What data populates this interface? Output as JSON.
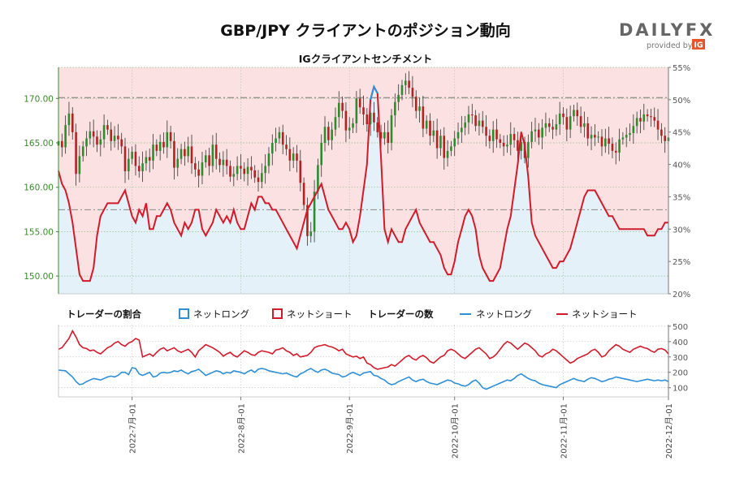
{
  "title": "GBP/JPY クライアントのポジション動向",
  "logo": {
    "name": "DAILYFX",
    "tagline": "provided by",
    "badge": "IG",
    "accent": "#e8552a"
  },
  "colors": {
    "net_long": "#2e8fd6",
    "net_short": "#d11a2a",
    "long_fill": "#e4f1f9",
    "short_fill": "#fbe1e1",
    "candle_up": "#2e8b2e",
    "candle_down": "#b22222",
    "axis_green": "#3c8a2e"
  },
  "chart_data": [
    {
      "type": "line",
      "subtitle": "IGクライアントセンチメント",
      "left_axis": {
        "range": [
          148,
          173.5
        ],
        "ticks": [
          "170.00",
          "165.00",
          "160.00",
          "155.00",
          "150.00"
        ],
        "tick_values": [
          170,
          165,
          160,
          155,
          150
        ]
      },
      "right_axis": {
        "range": [
          20,
          55
        ],
        "ticks": [
          "55%",
          "50%",
          "45%",
          "40%",
          "35%",
          "30%",
          "25%",
          "20%"
        ],
        "tick_values": [
          55,
          50,
          45,
          40,
          35,
          30,
          25,
          20
        ]
      },
      "x_ticks": [
        "2022-7月-01",
        "2022-8月-01",
        "2022-9月-01",
        "2022-10月-01",
        "2022-11月-01",
        "2022-12月-01"
      ],
      "x_tick_days": [
        21,
        52,
        83,
        113,
        144,
        174
      ],
      "reference_levels": {
        "price": 170.1,
        "percent": 33
      },
      "price_series": {
        "name": "GBP/JPY",
        "kind": "candlestick",
        "x_start_day": 0,
        "x_end_day": 174,
        "close": [
          165.2,
          164.5,
          167.0,
          168.3,
          166.2,
          161.5,
          163.5,
          164.6,
          165.5,
          166.3,
          165.7,
          164.8,
          165.4,
          167.0,
          166.5,
          165.2,
          165.8,
          165.4,
          164.6,
          161.8,
          163.2,
          164.0,
          162.4,
          161.8,
          162.7,
          163.4,
          163.0,
          164.8,
          164.1,
          165.1,
          164.5,
          166.2,
          165.2,
          162.2,
          163.2,
          164.3,
          163.5,
          164.6,
          162.7,
          162.0,
          161.3,
          162.8,
          163.6,
          162.4,
          164.8,
          163.2,
          162.5,
          163.1,
          162.4,
          161.2,
          161.5,
          162.4,
          162.1,
          161.5,
          162.3,
          161.9,
          161.1,
          160.6,
          161.6,
          162.4,
          163.8,
          165.0,
          165.5,
          166.2,
          164.8,
          164.3,
          163.0,
          163.8,
          163.0,
          160.5,
          158.0,
          154.5,
          155.0,
          159.5,
          162.5,
          165.0,
          166.8,
          165.3,
          166.5,
          167.9,
          169.5,
          168.6,
          166.4,
          166.7,
          167.2,
          170.0,
          169.0,
          168.2,
          167.1,
          168.4,
          167.3,
          166.2,
          165.5,
          166.2,
          165.0,
          168.1,
          169.6,
          170.4,
          171.5,
          172.0,
          171.2,
          170.2,
          168.6,
          169.1,
          166.6,
          167.5,
          165.8,
          166.4,
          164.4,
          165.8,
          163.3,
          164.1,
          164.6,
          165.5,
          166.2,
          166.7,
          167.3,
          168.2,
          168.1,
          166.9,
          167.5,
          166.8,
          165.8,
          165.2,
          166.5,
          165.4,
          165.0,
          164.6,
          164.8,
          166.0,
          165.3,
          164.1,
          165.1,
          163.3,
          165.1,
          166.3,
          166.5,
          165.6,
          166.7,
          167.2,
          166.8,
          166.5,
          167.1,
          168.3,
          167.9,
          166.5,
          168.0,
          168.7,
          168.0,
          166.8,
          167.2,
          165.5,
          165.9,
          165.6,
          165.7,
          164.6,
          165.5,
          164.9,
          164.1,
          163.9,
          165.4,
          165.6,
          165.9,
          166.1,
          166.9,
          167.8,
          167.4,
          168.2,
          168.0,
          167.9,
          167.5,
          166.5,
          165.8,
          165.2,
          165.6
        ]
      },
      "percent_series": [
        {
          "name": "ネットロング",
          "x_start_day": 0,
          "x_end_day": 174,
          "values": [
            39,
            37,
            36,
            34,
            31,
            27,
            23,
            22,
            22,
            22,
            24,
            29,
            32,
            33,
            34,
            34,
            34,
            34,
            35,
            36,
            34,
            32,
            31,
            33,
            32,
            34,
            30,
            30,
            32,
            32,
            33,
            34,
            33,
            31,
            30,
            29,
            31,
            30,
            31,
            33,
            33,
            30,
            29,
            30,
            31,
            33,
            32,
            31,
            32,
            31,
            33,
            31,
            30,
            30,
            32,
            34,
            33,
            35,
            35,
            34,
            34,
            33,
            33,
            32,
            31,
            30,
            29,
            28,
            27,
            29,
            31,
            33,
            34,
            35,
            36,
            37,
            35,
            33,
            32,
            31,
            30,
            30,
            31,
            30,
            28,
            29,
            32,
            36,
            40,
            50,
            52,
            51,
            41,
            30,
            28,
            30,
            29,
            28,
            28,
            30,
            31,
            32,
            33,
            31,
            30,
            29,
            28,
            28,
            27,
            26,
            24,
            23,
            23,
            25,
            28,
            30,
            32,
            33,
            32,
            30,
            26,
            24,
            23,
            22,
            22,
            23,
            24,
            27,
            30,
            32,
            36,
            40,
            45,
            43,
            38,
            31,
            29,
            28,
            27,
            26,
            25,
            24,
            24,
            25,
            25,
            26,
            27,
            29,
            31,
            33,
            35,
            36,
            36,
            36,
            35,
            34,
            33,
            32,
            32,
            31,
            30,
            30,
            30,
            30,
            30,
            30,
            30,
            30,
            29,
            29,
            29,
            30,
            30,
            31,
            31
          ]
        },
        {
          "name": "ネットショート",
          "x_start_day": 0,
          "x_end_day": 174,
          "values": [
            39,
            37,
            36,
            34,
            31,
            27,
            23,
            22,
            22,
            22,
            24,
            29,
            32,
            33,
            34,
            34,
            34,
            34,
            35,
            36,
            34,
            32,
            31,
            33,
            32,
            34,
            30,
            30,
            32,
            32,
            33,
            34,
            33,
            31,
            30,
            29,
            31,
            30,
            31,
            33,
            33,
            30,
            29,
            30,
            31,
            33,
            32,
            31,
            32,
            31,
            33,
            31,
            30,
            30,
            32,
            34,
            33,
            35,
            35,
            34,
            34,
            33,
            33,
            32,
            31,
            30,
            29,
            28,
            27,
            29,
            31,
            33,
            34,
            35,
            36,
            37,
            35,
            33,
            32,
            31,
            30,
            30,
            31,
            30,
            28,
            29,
            32,
            36,
            40,
            50,
            52,
            51,
            41,
            30,
            28,
            30,
            29,
            28,
            28,
            30,
            31,
            32,
            33,
            31,
            30,
            29,
            28,
            28,
            27,
            26,
            24,
            23,
            23,
            25,
            28,
            30,
            32,
            33,
            32,
            30,
            26,
            24,
            23,
            22,
            22,
            23,
            24,
            27,
            30,
            32,
            36,
            40,
            45,
            43,
            38,
            31,
            29,
            28,
            27,
            26,
            25,
            24,
            24,
            25,
            25,
            26,
            27,
            29,
            31,
            33,
            35,
            36,
            36,
            36,
            35,
            34,
            33,
            32,
            32,
            31,
            30,
            30,
            30,
            30,
            30,
            30,
            30,
            30,
            29,
            29,
            29,
            30,
            30,
            31,
            31
          ]
        }
      ]
    },
    {
      "type": "line",
      "y_axis": {
        "range": [
          40,
          510
        ],
        "ticks": [
          "500",
          "400",
          "300",
          "200",
          "100"
        ],
        "tick_values": [
          500,
          400,
          300,
          200,
          100
        ]
      },
      "legend": {
        "ratio_title": "トレーダーの割合",
        "ratio_long": "ネットロング",
        "ratio_short": "ネットショート",
        "count_title": "トレーダーの数",
        "count_long": "ネットロング",
        "count_short": "ネットショート"
      },
      "series": [
        {
          "name": "ネットロング",
          "x_start_day": 0,
          "x_end_day": 174,
          "values": [
            215,
            212,
            210,
            190,
            170,
            140,
            120,
            125,
            140,
            150,
            160,
            155,
            150,
            160,
            170,
            175,
            170,
            180,
            200,
            200,
            185,
            230,
            225,
            190,
            180,
            190,
            200,
            170,
            175,
            195,
            200,
            195,
            200,
            210,
            205,
            215,
            200,
            190,
            205,
            210,
            220,
            200,
            180,
            190,
            200,
            210,
            205,
            190,
            200,
            195,
            210,
            205,
            200,
            190,
            205,
            215,
            200,
            220,
            225,
            220,
            210,
            205,
            200,
            195,
            190,
            195,
            185,
            175,
            170,
            190,
            200,
            215,
            225,
            210,
            200,
            215,
            220,
            210,
            195,
            190,
            185,
            170,
            175,
            190,
            200,
            190,
            180,
            195,
            200,
            205,
            180,
            175,
            160,
            150,
            130,
            120,
            125,
            140,
            150,
            160,
            170,
            150,
            140,
            150,
            155,
            140,
            130,
            125,
            120,
            130,
            140,
            150,
            145,
            130,
            125,
            115,
            110,
            120,
            140,
            150,
            130,
            100,
            90,
            100,
            110,
            120,
            130,
            140,
            150,
            145,
            160,
            180,
            190,
            175,
            160,
            150,
            145,
            130,
            120,
            115,
            110,
            105,
            100,
            120,
            130,
            140,
            150,
            160,
            150,
            145,
            140,
            155,
            165,
            160,
            150,
            140,
            145,
            155,
            160,
            170,
            165,
            160,
            155,
            150,
            145,
            140,
            145,
            150,
            155,
            150,
            145,
            150,
            145,
            150,
            140
          ]
        },
        {
          "name": "ネットショート",
          "x_start_day": 0,
          "x_end_day": 174,
          "values": [
            350,
            360,
            390,
            420,
            470,
            430,
            380,
            360,
            355,
            340,
            345,
            330,
            320,
            340,
            360,
            370,
            390,
            400,
            380,
            370,
            390,
            400,
            420,
            410,
            300,
            310,
            320,
            305,
            330,
            350,
            360,
            340,
            350,
            360,
            340,
            330,
            340,
            350,
            330,
            300,
            340,
            360,
            380,
            370,
            360,
            345,
            330,
            305,
            320,
            330,
            310,
            300,
            320,
            340,
            330,
            315,
            310,
            330,
            340,
            335,
            330,
            320,
            345,
            350,
            360,
            340,
            330,
            310,
            320,
            300,
            305,
            310,
            330,
            360,
            370,
            375,
            380,
            370,
            365,
            355,
            340,
            350,
            320,
            310,
            300,
            305,
            290,
            300,
            260,
            250,
            230,
            220,
            225,
            230,
            235,
            250,
            240,
            260,
            280,
            300,
            310,
            290,
            280,
            300,
            310,
            295,
            270,
            260,
            280,
            300,
            310,
            340,
            350,
            340,
            320,
            300,
            290,
            310,
            330,
            350,
            360,
            340,
            320,
            290,
            300,
            320,
            350,
            380,
            400,
            390,
            370,
            350,
            370,
            390,
            380,
            360,
            340,
            310,
            300,
            320,
            330,
            350,
            340,
            320,
            300,
            280,
            260,
            270,
            290,
            300,
            310,
            320,
            340,
            350,
            330,
            300,
            310,
            340,
            360,
            380,
            370,
            350,
            340,
            330,
            350,
            360,
            370,
            360,
            355,
            340,
            330,
            350,
            355,
            345,
            320
          ]
        }
      ]
    }
  ]
}
